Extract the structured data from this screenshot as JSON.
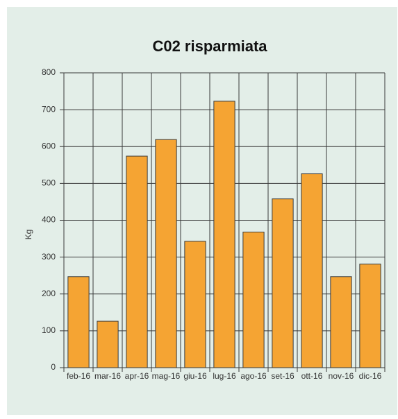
{
  "chart_data": {
    "type": "bar",
    "title": "C02 risparmiata",
    "y_label": "Kg",
    "categories": [
      "feb-16",
      "mar-16",
      "apr-16",
      "mag-16",
      "giu-16",
      "lug-16",
      "ago-16",
      "set-16",
      "ott-16",
      "nov-16",
      "dic-16"
    ],
    "values": [
      247,
      126,
      574,
      619,
      343,
      723,
      368,
      458,
      526,
      247,
      281
    ],
    "color": "#f5a433",
    "ylim": [
      0,
      800
    ],
    "yticks": [
      0,
      100,
      200,
      300,
      400,
      500,
      600,
      700,
      800
    ],
    "grid": true
  }
}
